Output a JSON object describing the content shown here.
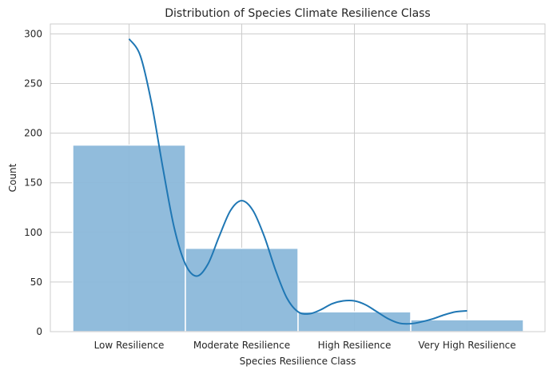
{
  "chart_data": {
    "type": "bar",
    "title": "Distribution of Species Climate Resilience Class",
    "xlabel": "Species Resilience Class",
    "ylabel": "Count",
    "categories": [
      "Low Resilience",
      "Moderate Resilience",
      "High Resilience",
      "Very High Resilience"
    ],
    "values": [
      188,
      84,
      20,
      12
    ],
    "ylim": [
      0,
      310
    ],
    "yticks": [
      0,
      50,
      100,
      150,
      200,
      250,
      300
    ],
    "kde": {
      "x": [
        0,
        0.1,
        0.2,
        0.3,
        0.4,
        0.5,
        0.6,
        0.7,
        0.8,
        0.9,
        1.0,
        1.1,
        1.2,
        1.3,
        1.4,
        1.5,
        1.6,
        1.7,
        1.8,
        1.9,
        2.0,
        2.1,
        2.2,
        2.3,
        2.4,
        2.5,
        2.6,
        2.7,
        2.8,
        2.9,
        3.0
      ],
      "y": [
        295,
        278,
        230,
        165,
        105,
        68,
        56,
        68,
        96,
        122,
        132,
        122,
        96,
        62,
        34,
        20,
        18,
        22,
        28,
        31,
        31,
        27,
        20,
        13,
        8.5,
        8,
        10,
        13,
        17,
        20,
        21
      ]
    },
    "grid": true,
    "bar_color": "#8bb8da",
    "bar_edge_color": "#ffffff",
    "line_color": "#1f77b4"
  }
}
